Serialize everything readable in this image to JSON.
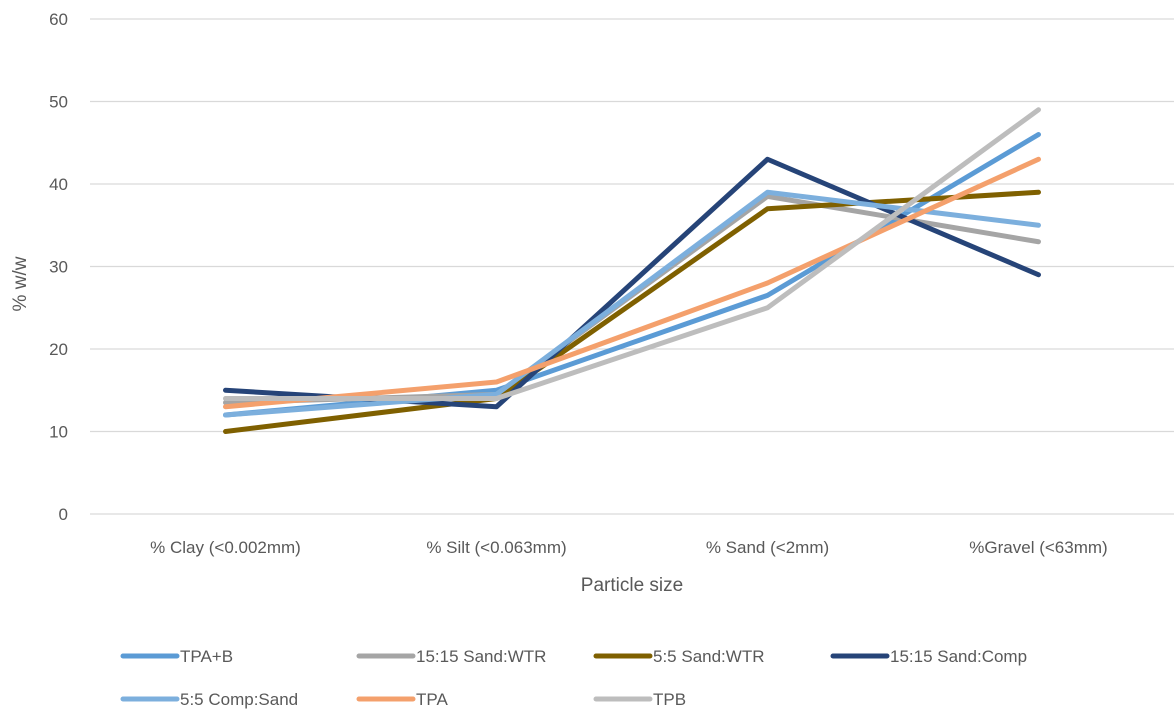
{
  "chart_data": {
    "type": "line",
    "title": "",
    "xlabel": "Particle size",
    "ylabel": "% w/w",
    "ylim": [
      0,
      60
    ],
    "yticks": [
      0,
      10,
      20,
      30,
      40,
      50,
      60
    ],
    "grid": "horizontal",
    "legend_position": "bottom",
    "categories": [
      "% Clay (<0.002mm)",
      "% Silt (<0.063mm)",
      "% Sand (<2mm)",
      "%Gravel (<63mm)"
    ],
    "series": [
      {
        "name": "TPA+B",
        "color": "#5b9bd5",
        "values": [
          12,
          15,
          26.5,
          46
        ]
      },
      {
        "name": "15:15 Sand:WTR",
        "color": "#a5a5a5",
        "values": [
          13.5,
          14.5,
          38.5,
          33
        ]
      },
      {
        "name": "5:5 Sand:WTR",
        "color": "#7f6000",
        "values": [
          10,
          14,
          37,
          39
        ]
      },
      {
        "name": "15:15 Sand:Comp",
        "color": "#264478",
        "values": [
          15,
          13,
          43,
          29
        ]
      },
      {
        "name": "5:5 Comp:Sand",
        "color": "#7cafdd",
        "values": [
          12,
          14.5,
          39,
          35
        ]
      },
      {
        "name": "TPA",
        "color": "#f4a06c",
        "values": [
          13,
          16,
          28,
          43
        ]
      },
      {
        "name": "TPB",
        "color": "#bdbdbd",
        "values": [
          14,
          14,
          25,
          49
        ]
      }
    ]
  }
}
